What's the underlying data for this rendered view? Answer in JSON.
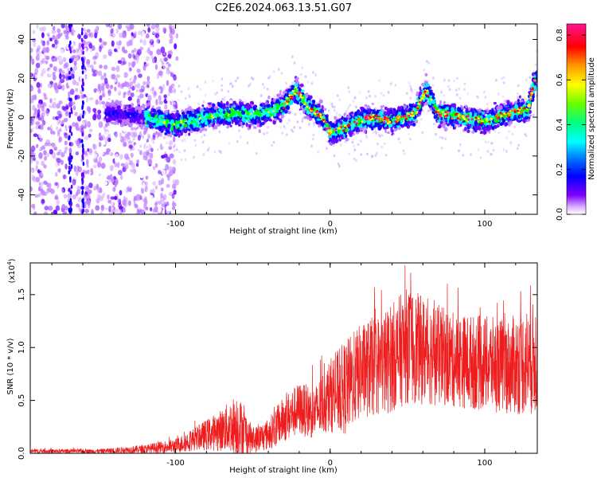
{
  "title": "C2E6.2024.063.13.51.G07",
  "colors": {
    "snr_line": "#ee1c1c",
    "axis": "#000000",
    "frame": "#555555"
  },
  "chart_data": [
    {
      "type": "heatmap",
      "title": "C2E6.2024.063.13.51.G07",
      "xlabel": "Height of straight line (km)",
      "ylabel": "Frequency (Hz)",
      "xlim": [
        -194,
        134
      ],
      "ylim": [
        -50,
        48
      ],
      "x_ticks": [
        -100,
        0,
        100
      ],
      "y_ticks": [
        -40,
        -20,
        0,
        20,
        40
      ],
      "x_tick_labels": [
        "-100",
        "0",
        "100"
      ],
      "y_tick_labels": [
        "-40",
        "-20",
        "0",
        "20",
        "40"
      ],
      "colorbar": {
        "label": "Normalized spectral amplitude",
        "range": [
          0.0,
          0.85
        ],
        "ticks": [
          0.0,
          0.2,
          0.4,
          0.6,
          0.8
        ],
        "tick_labels": [
          "0.0",
          "0.2",
          "0.4",
          "0.6",
          "0.8"
        ],
        "colormap": [
          "#ffffff",
          "#c080ff",
          "#6600ff",
          "#0000ff",
          "#00ffff",
          "#00ff00",
          "#ffff00",
          "#ff7f00",
          "#ff0000",
          "#ff1493"
        ]
      },
      "ridge": [
        {
          "x": -140,
          "y": 2
        },
        {
          "x": -120,
          "y": 0
        },
        {
          "x": -100,
          "y": -4
        },
        {
          "x": -80,
          "y": 0
        },
        {
          "x": -60,
          "y": 2
        },
        {
          "x": -45,
          "y": 1
        },
        {
          "x": -30,
          "y": 6
        },
        {
          "x": -22,
          "y": 14
        },
        {
          "x": -15,
          "y": 6
        },
        {
          "x": -5,
          "y": 0
        },
        {
          "x": 0,
          "y": -8
        },
        {
          "x": 10,
          "y": -5
        },
        {
          "x": 25,
          "y": 0
        },
        {
          "x": 40,
          "y": -2
        },
        {
          "x": 55,
          "y": 2
        },
        {
          "x": 62,
          "y": 14
        },
        {
          "x": 70,
          "y": 2
        },
        {
          "x": 85,
          "y": 0
        },
        {
          "x": 100,
          "y": -2
        },
        {
          "x": 115,
          "y": 2
        },
        {
          "x": 128,
          "y": 4
        },
        {
          "x": 132,
          "y": 18
        }
      ]
    },
    {
      "type": "line",
      "xlabel": "Height of straight line (km)",
      "ylabel": "SNR (10 * v/v)",
      "y_multiplier": "(x10",
      "y_multiplier_exp": "4",
      "y_multiplier_close": ")",
      "xlim": [
        -194,
        134
      ],
      "ylim": [
        0,
        1.8
      ],
      "x_ticks": [
        -100,
        0,
        100
      ],
      "y_ticks": [
        0.0,
        0.5,
        1.0,
        1.5
      ],
      "x_tick_labels": [
        "-100",
        "0",
        "100"
      ],
      "y_tick_labels": [
        "0.0",
        "0.5",
        "1.0",
        "1.5"
      ],
      "envelope": [
        {
          "x": -194,
          "mean": 0.02,
          "spread": 0.02
        },
        {
          "x": -150,
          "mean": 0.02,
          "spread": 0.02
        },
        {
          "x": -120,
          "mean": 0.04,
          "spread": 0.04
        },
        {
          "x": -100,
          "mean": 0.07,
          "spread": 0.07
        },
        {
          "x": -85,
          "mean": 0.15,
          "spread": 0.12
        },
        {
          "x": -70,
          "mean": 0.22,
          "spread": 0.2
        },
        {
          "x": -60,
          "mean": 0.28,
          "spread": 0.3
        },
        {
          "x": -50,
          "mean": 0.12,
          "spread": 0.12
        },
        {
          "x": -40,
          "mean": 0.18,
          "spread": 0.15
        },
        {
          "x": -30,
          "mean": 0.32,
          "spread": 0.22
        },
        {
          "x": -20,
          "mean": 0.42,
          "spread": 0.25
        },
        {
          "x": -10,
          "mean": 0.38,
          "spread": 0.25
        },
        {
          "x": 0,
          "mean": 0.55,
          "spread": 0.35
        },
        {
          "x": 10,
          "mean": 0.62,
          "spread": 0.45
        },
        {
          "x": 20,
          "mean": 0.78,
          "spread": 0.45
        },
        {
          "x": 35,
          "mean": 0.85,
          "spread": 0.5
        },
        {
          "x": 50,
          "mean": 1.02,
          "spread": 0.55
        },
        {
          "x": 65,
          "mean": 0.95,
          "spread": 0.5
        },
        {
          "x": 80,
          "mean": 0.88,
          "spread": 0.45
        },
        {
          "x": 100,
          "mean": 0.85,
          "spread": 0.45
        },
        {
          "x": 115,
          "mean": 0.82,
          "spread": 0.45
        },
        {
          "x": 134,
          "mean": 0.9,
          "spread": 0.55
        }
      ]
    }
  ]
}
